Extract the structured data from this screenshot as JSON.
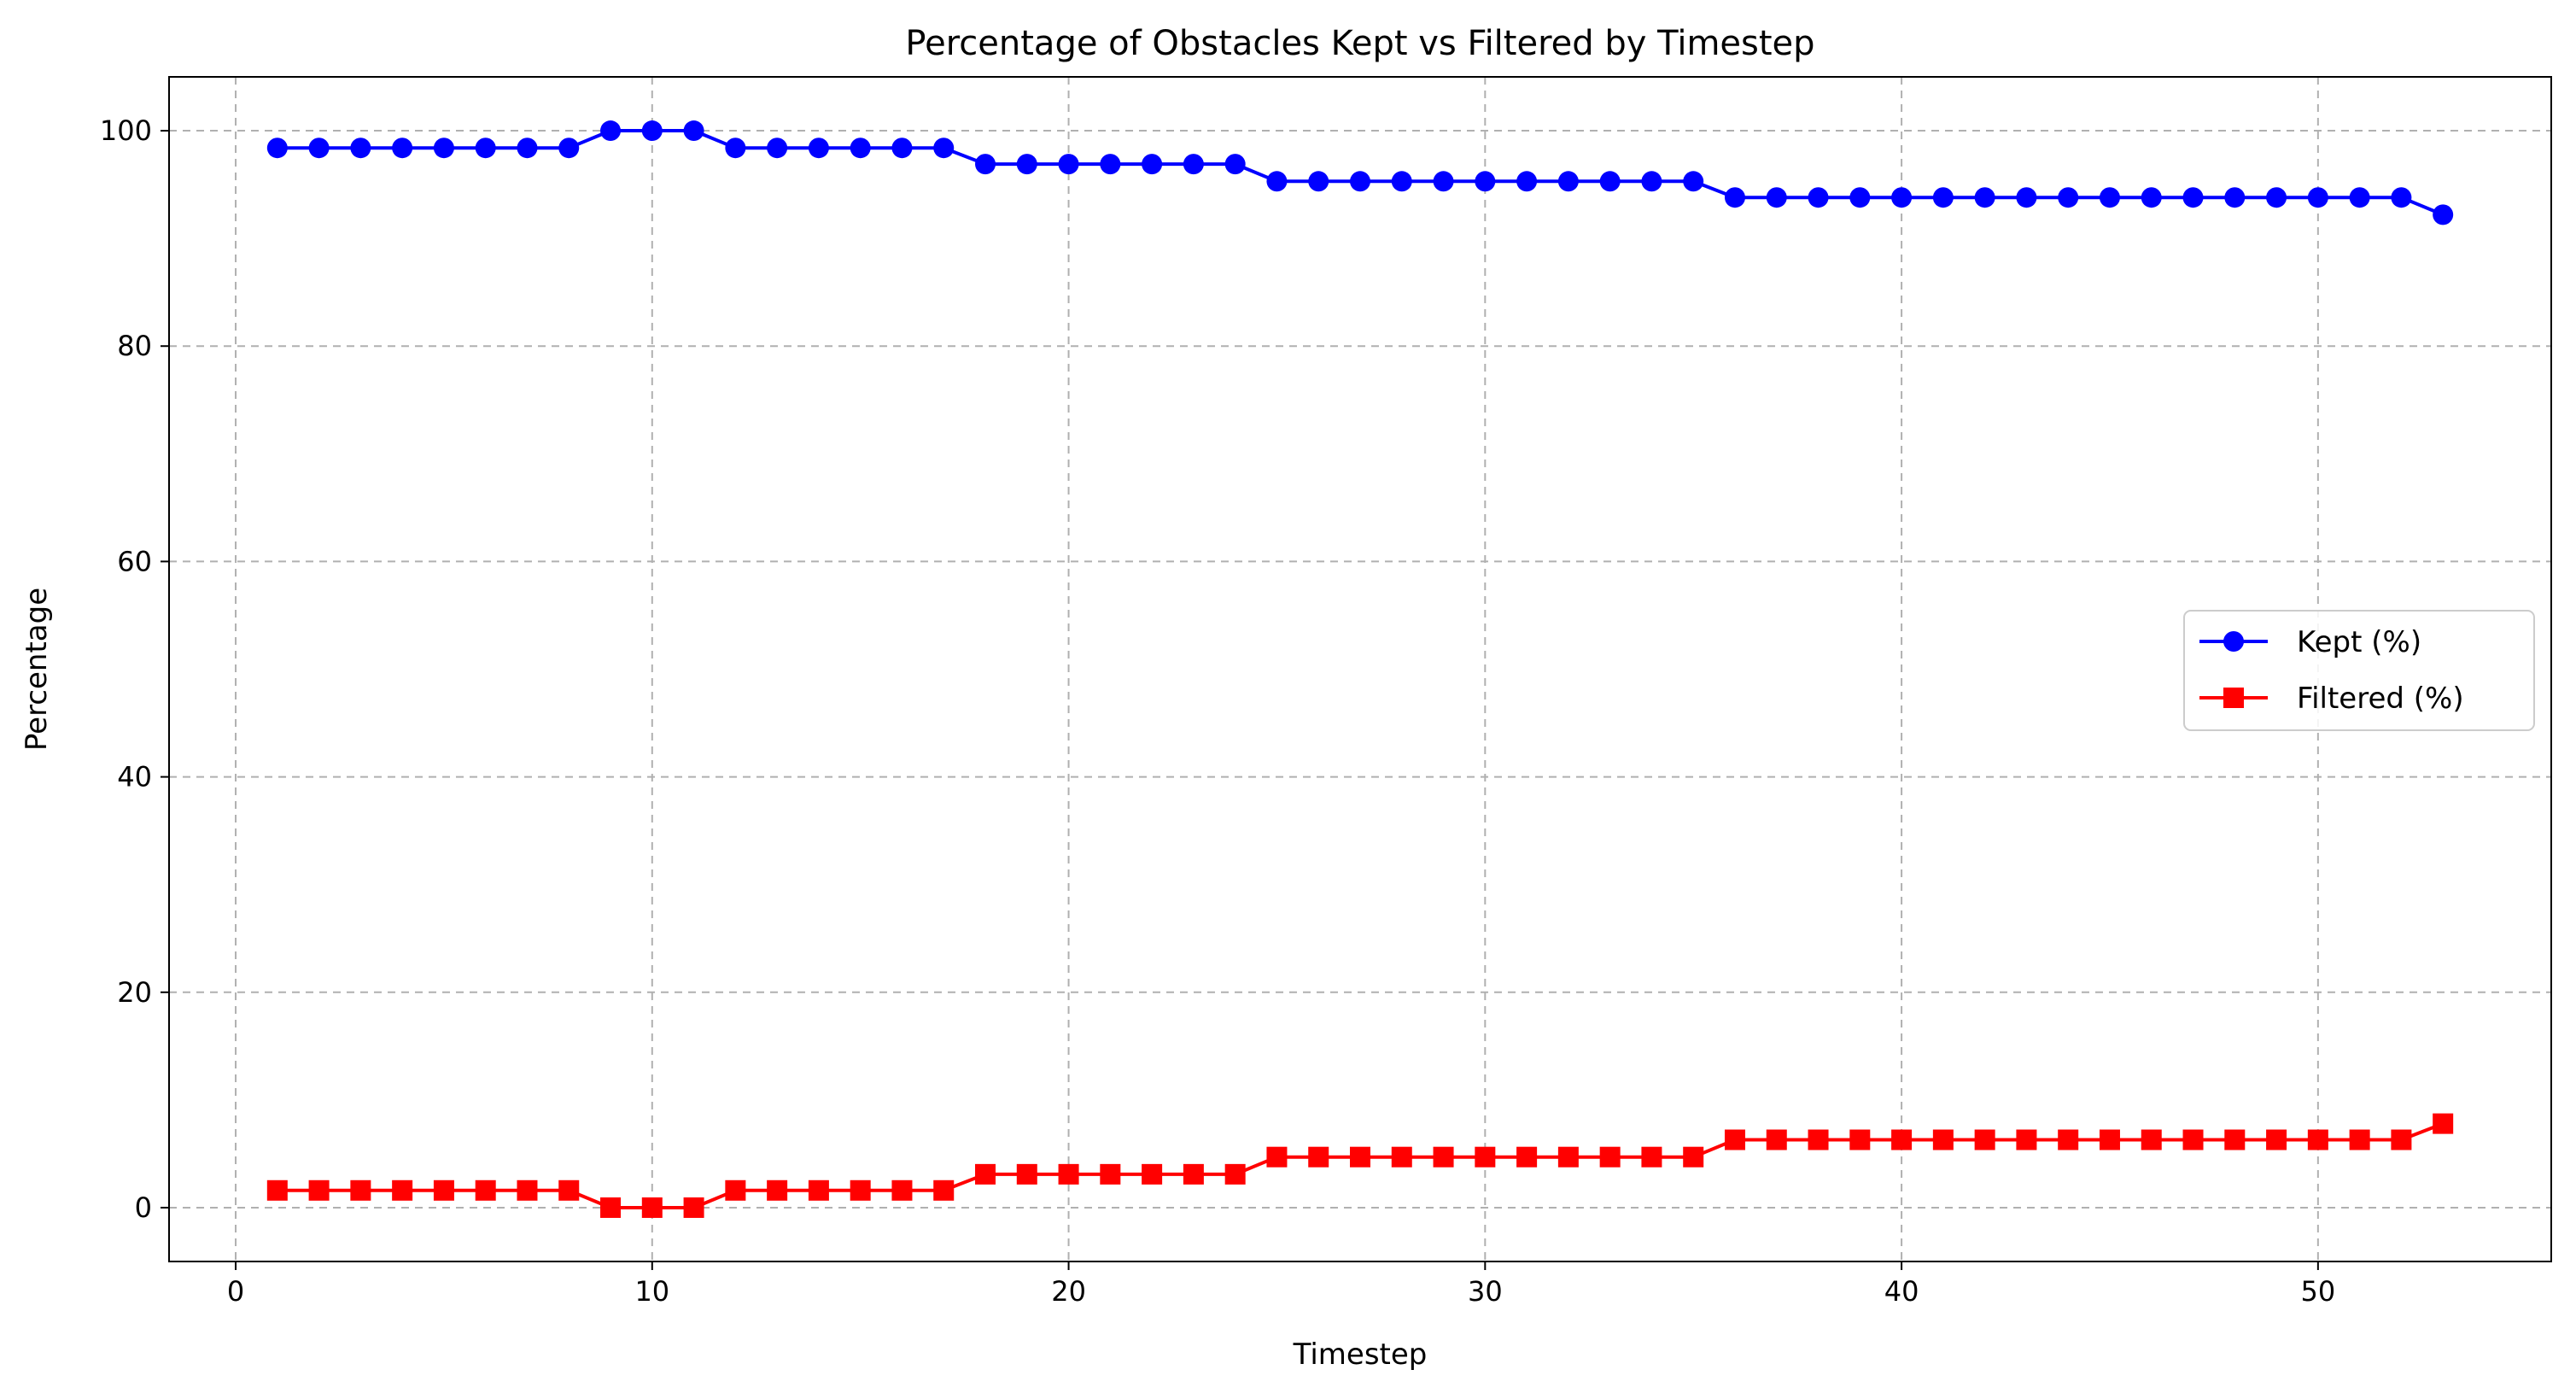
{
  "chart_data": {
    "type": "line",
    "title": "Percentage of Obstacles Kept vs Filtered by Timestep",
    "xlabel": "Timestep",
    "ylabel": "Percentage",
    "xlim": [
      -1.6,
      55.6
    ],
    "ylim": [
      -5,
      105
    ],
    "xticks": [
      0,
      10,
      20,
      30,
      40,
      50
    ],
    "yticks": [
      0,
      20,
      40,
      60,
      80,
      100
    ],
    "grid": true,
    "legend_position": "center-right",
    "x": [
      1,
      2,
      3,
      4,
      5,
      6,
      7,
      8,
      9,
      10,
      11,
      12,
      13,
      14,
      15,
      16,
      17,
      18,
      19,
      20,
      21,
      22,
      23,
      24,
      25,
      26,
      27,
      28,
      29,
      30,
      31,
      32,
      33,
      34,
      35,
      36,
      37,
      38,
      39,
      40,
      41,
      42,
      43,
      44,
      45,
      46,
      47,
      48,
      49,
      50,
      51,
      52,
      53
    ],
    "series": [
      {
        "name": "Kept (%)",
        "color": "#0000ff",
        "marker": "circle",
        "values": [
          98.4,
          98.4,
          98.4,
          98.4,
          98.4,
          98.4,
          98.4,
          98.4,
          100,
          100,
          100,
          98.4,
          98.4,
          98.4,
          98.4,
          98.4,
          98.4,
          96.9,
          96.9,
          96.9,
          96.9,
          96.9,
          96.9,
          96.9,
          95.3,
          95.3,
          95.3,
          95.3,
          95.3,
          95.3,
          95.3,
          95.3,
          95.3,
          95.3,
          95.3,
          93.8,
          93.8,
          93.8,
          93.8,
          93.8,
          93.8,
          93.8,
          93.8,
          93.8,
          93.8,
          93.8,
          93.8,
          93.8,
          93.8,
          93.8,
          93.8,
          93.8,
          92.2
        ]
      },
      {
        "name": "Filtered (%)",
        "color": "#ff0000",
        "marker": "square",
        "values": [
          1.6,
          1.6,
          1.6,
          1.6,
          1.6,
          1.6,
          1.6,
          1.6,
          0,
          0,
          0,
          1.6,
          1.6,
          1.6,
          1.6,
          1.6,
          1.6,
          3.1,
          3.1,
          3.1,
          3.1,
          3.1,
          3.1,
          3.1,
          4.7,
          4.7,
          4.7,
          4.7,
          4.7,
          4.7,
          4.7,
          4.7,
          4.7,
          4.7,
          4.7,
          6.3,
          6.3,
          6.3,
          6.3,
          6.3,
          6.3,
          6.3,
          6.3,
          6.3,
          6.3,
          6.3,
          6.3,
          6.3,
          6.3,
          6.3,
          6.3,
          6.3,
          7.8
        ]
      }
    ]
  }
}
